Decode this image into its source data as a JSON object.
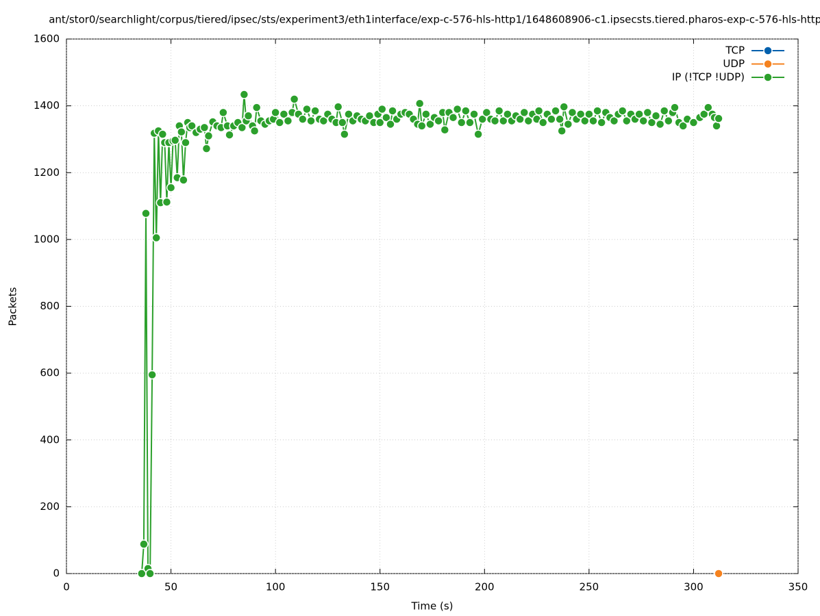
{
  "chart_data": {
    "type": "line",
    "title": "ant/stor0/searchlight/corpus/tiered/ipsec/sts/experiment3/eth1interface/exp-c-576-hls-http1/1648608906-c1.ipsecsts.tiered.pharos-exp-c-576-hls-http1",
    "xlabel": "Time (s)",
    "ylabel": "Packets",
    "xlim": [
      0,
      350
    ],
    "xticks": [
      0,
      50,
      100,
      150,
      200,
      250,
      300,
      350
    ],
    "ylim": [
      0,
      1600
    ],
    "yticks": [
      0,
      200,
      400,
      600,
      800,
      1000,
      1200,
      1400,
      1600
    ],
    "grid": true,
    "legend": "top-right",
    "series": [
      {
        "name": "TCP",
        "color": "#0060ad",
        "x": [
          312
        ],
        "values": [
          0
        ]
      },
      {
        "name": "UDP",
        "color": "#f5821f",
        "x": [
          312
        ],
        "values": [
          0
        ]
      },
      {
        "name": "IP (!TCP  !UDP)",
        "color": "#2ca02c",
        "x": [
          36,
          37,
          38,
          39,
          40,
          41,
          42,
          43,
          44,
          45,
          46,
          47,
          48,
          49,
          50,
          51,
          52,
          53,
          54,
          55,
          56,
          57,
          58,
          59,
          60,
          62,
          64,
          66,
          67,
          68,
          70,
          72,
          74,
          75,
          77,
          78,
          80,
          82,
          84,
          85,
          86,
          87,
          89,
          90,
          91,
          93,
          95,
          97,
          99,
          100,
          102,
          104,
          106,
          108,
          109,
          111,
          113,
          115,
          117,
          119,
          121,
          123,
          125,
          127,
          129,
          130,
          132,
          133,
          135,
          137,
          139,
          141,
          143,
          145,
          147,
          149,
          150,
          151,
          153,
          155,
          156,
          158,
          160,
          162,
          164,
          166,
          168,
          169,
          170,
          172,
          174,
          176,
          178,
          180,
          181,
          183,
          185,
          187,
          189,
          191,
          193,
          195,
          197,
          199,
          201,
          203,
          205,
          207,
          209,
          211,
          213,
          215,
          217,
          219,
          221,
          223,
          225,
          226,
          228,
          230,
          232,
          234,
          236,
          237,
          238,
          240,
          242,
          244,
          246,
          248,
          250,
          252,
          254,
          256,
          258,
          260,
          262,
          264,
          266,
          268,
          270,
          272,
          274,
          276,
          278,
          280,
          282,
          284,
          286,
          288,
          290,
          291,
          293,
          295,
          297,
          300,
          303,
          305,
          307,
          309,
          310,
          311,
          312
        ],
        "values": [
          0,
          88,
          1078,
          15,
          0,
          595,
          1318,
          1005,
          1325,
          1110,
          1315,
          1290,
          1112,
          1290,
          1155,
          1295,
          1297,
          1185,
          1340,
          1322,
          1178,
          1290,
          1350,
          1335,
          1340,
          1320,
          1330,
          1335,
          1272,
          1310,
          1352,
          1340,
          1335,
          1380,
          1340,
          1313,
          1340,
          1350,
          1335,
          1434,
          1355,
          1370,
          1340,
          1325,
          1395,
          1355,
          1345,
          1355,
          1360,
          1380,
          1350,
          1375,
          1355,
          1380,
          1420,
          1375,
          1360,
          1390,
          1355,
          1385,
          1360,
          1355,
          1375,
          1360,
          1350,
          1397,
          1350,
          1315,
          1375,
          1355,
          1370,
          1360,
          1355,
          1370,
          1350,
          1375,
          1350,
          1390,
          1365,
          1345,
          1385,
          1360,
          1375,
          1380,
          1375,
          1360,
          1345,
          1407,
          1340,
          1375,
          1345,
          1365,
          1355,
          1380,
          1328,
          1380,
          1365,
          1390,
          1350,
          1385,
          1350,
          1375,
          1315,
          1360,
          1380,
          1360,
          1355,
          1385,
          1355,
          1375,
          1355,
          1370,
          1360,
          1380,
          1355,
          1375,
          1360,
          1385,
          1350,
          1375,
          1360,
          1385,
          1360,
          1325,
          1397,
          1345,
          1380,
          1360,
          1375,
          1355,
          1375,
          1355,
          1385,
          1350,
          1380,
          1365,
          1355,
          1375,
          1385,
          1355,
          1375,
          1360,
          1375,
          1355,
          1380,
          1350,
          1370,
          1345,
          1385,
          1355,
          1380,
          1395,
          1350,
          1340,
          1360,
          1350,
          1365,
          1375,
          1395,
          1375,
          1365,
          1340,
          1362
        ]
      }
    ]
  }
}
